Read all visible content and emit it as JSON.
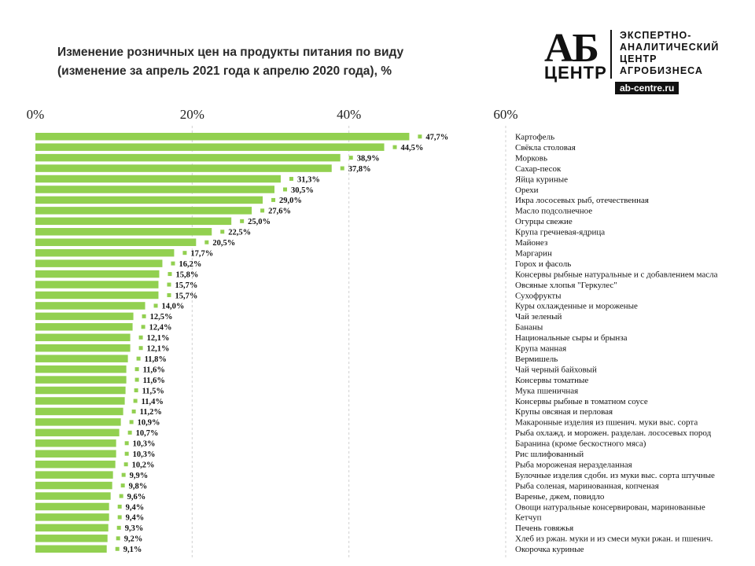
{
  "title_line1": "Изменение розничных цен на продукты питания по виду",
  "title_line2": "(изменение за апрель 2021 года к апрелю 2020 года), %",
  "logo": {
    "mark": "АБ",
    "sub": "ЦЕНТР",
    "line1": "ЭКСПЕРТНО-",
    "line2": "АНАЛИТИЧЕСКИЙ",
    "line3": "ЦЕНТР",
    "line4": "АГРОБИЗНЕСА",
    "url": "ab-centre.ru"
  },
  "colors": {
    "bar": "#92d050",
    "grid": "#d0d0d0",
    "text": "#111111"
  },
  "chart_data": {
    "type": "bar",
    "orientation": "horizontal",
    "title": "Изменение розничных цен на продукты питания по виду (изменение за апрель 2021 года к апрелю 2020 года), %",
    "xlim": [
      0,
      60
    ],
    "xticks": [
      "0%",
      "20%",
      "40%",
      "60%"
    ],
    "tick_values": [
      0,
      20,
      40,
      60
    ],
    "grid": true,
    "categories": [
      "Картофель",
      "Свёкла столовая",
      "Морковь",
      "Сахар-песок",
      "Яйца куриные",
      "Орехи",
      "Икра лососевых  рыб, отечественная",
      "Масло подсолнечное",
      "Огурцы свежие",
      "Крупа гречневая-ядрица",
      "Майонез",
      "Маргарин",
      "Горох и фасоль",
      "Консервы рыбные натуральные и с добавлением  масла",
      "Овсяные хлопья \"Геркулес\"",
      "Сухофрукты",
      "Куры охлажденные  и мороженые",
      "Чай зеленый",
      "Бананы",
      "Национальные  сыры и брынза",
      "Крупа манная",
      "Вермишель",
      "Чай черный байховый",
      "Консервы томатные",
      "Мука пшеничная",
      "Консервы рыбные в томатном  соусе",
      "Крупы овсяная и перловая",
      "Макаронные изделия  из пшенич.  муки выс. сорта",
      "Рыба охлажд.  и морожен.  разделан. лососевых  пород",
      "Баранина (кроме бескостного мяса)",
      "Рис шлифованный",
      "Рыба мороженая неразделанная",
      "Булочные изделия сдобн.  из муки выс. сорта штучные",
      "Рыба соленая, маринованная,  копченая",
      "Варенье, джем, повидло",
      "Овощи натуральные консервирован, маринованные",
      "Кетчуп",
      "Печень говяжья",
      "Хлеб из ржан. муки и из смеси  муки ржан. и пшенич.",
      "Окорочка куриные"
    ],
    "values": [
      47.7,
      44.5,
      38.9,
      37.8,
      31.3,
      30.5,
      29.0,
      27.6,
      25.0,
      22.5,
      20.5,
      17.7,
      16.2,
      15.8,
      15.7,
      15.7,
      14.0,
      12.5,
      12.4,
      12.1,
      12.1,
      11.8,
      11.6,
      11.6,
      11.5,
      11.4,
      11.2,
      10.9,
      10.7,
      10.3,
      10.3,
      10.2,
      9.9,
      9.8,
      9.6,
      9.4,
      9.4,
      9.3,
      9.2,
      9.1
    ],
    "value_labels": [
      "47,7%",
      "44,5%",
      "38,9%",
      "37,8%",
      "31,3%",
      "30,5%",
      "29,0%",
      "27,6%",
      "25,0%",
      "22,5%",
      "20,5%",
      "17,7%",
      "16,2%",
      "15,8%",
      "15,7%",
      "15,7%",
      "14,0%",
      "12,5%",
      "12,4%",
      "12,1%",
      "12,1%",
      "11,8%",
      "11,6%",
      "11,6%",
      "11,5%",
      "11,4%",
      "11,2%",
      "10,9%",
      "10,7%",
      "10,3%",
      "10,3%",
      "10,2%",
      "9,9%",
      "9,8%",
      "9,6%",
      "9,4%",
      "9,4%",
      "9,3%",
      "9,2%",
      "9,1%"
    ]
  }
}
